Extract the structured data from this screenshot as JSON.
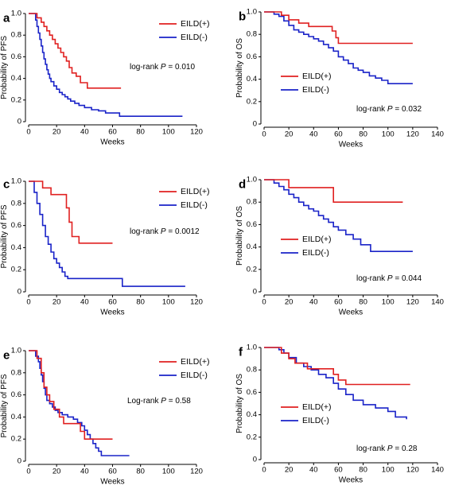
{
  "chart_data": [
    {
      "panel": "a",
      "type": "line",
      "step": true,
      "xlabel": "Weeks",
      "ylabel": "Probability of PFS",
      "xlim": [
        0,
        120
      ],
      "ylim": [
        0,
        1.0
      ],
      "xticks": [
        "0",
        "20",
        "40",
        "60",
        "80",
        "100",
        "120"
      ],
      "yticks": [
        "0",
        "0.2",
        "0.4",
        "0.6",
        "0.8",
        "1.0"
      ],
      "legend_position": "top-right",
      "annotation": {
        "prefix": "log-rank ",
        "italic": "P",
        "suffix": " = 0.010"
      },
      "series": [
        {
          "name": "EILD(+)",
          "color": "#e02020",
          "x": [
            0,
            6,
            9,
            11,
            13,
            15,
            17,
            19,
            21,
            23,
            25,
            27,
            29,
            31,
            34,
            37,
            42,
            66
          ],
          "y": [
            1.0,
            0.96,
            0.92,
            0.88,
            0.84,
            0.8,
            0.76,
            0.72,
            0.68,
            0.64,
            0.6,
            0.56,
            0.5,
            0.45,
            0.42,
            0.36,
            0.31,
            0.31
          ]
        },
        {
          "name": "EILD(-)",
          "color": "#1a23c8",
          "x": [
            0,
            5,
            6,
            7,
            8,
            9,
            10,
            11,
            12,
            13,
            14,
            15,
            16,
            18,
            20,
            22,
            24,
            26,
            28,
            30,
            33,
            36,
            40,
            45,
            50,
            55,
            65,
            110
          ],
          "y": [
            1.0,
            0.94,
            0.88,
            0.82,
            0.76,
            0.7,
            0.64,
            0.58,
            0.53,
            0.48,
            0.44,
            0.4,
            0.37,
            0.33,
            0.3,
            0.27,
            0.25,
            0.23,
            0.21,
            0.19,
            0.17,
            0.15,
            0.13,
            0.11,
            0.1,
            0.08,
            0.05,
            0.05
          ]
        }
      ]
    },
    {
      "panel": "b",
      "type": "line",
      "step": true,
      "xlabel": "Weeks",
      "ylabel": "Probability of OS",
      "xlim": [
        0,
        140
      ],
      "ylim": [
        0,
        1.0
      ],
      "xticks": [
        "0",
        "20",
        "40",
        "60",
        "80",
        "100",
        "120",
        "140"
      ],
      "yticks": [
        "0",
        "0.2",
        "0.4",
        "0.6",
        "0.8",
        "1.0"
      ],
      "legend_position": "center-left",
      "annotation": {
        "prefix": "log-rank ",
        "italic": "P",
        "suffix": " = 0.032"
      },
      "series": [
        {
          "name": "EILD(+)",
          "color": "#e02020",
          "x": [
            0,
            14,
            20,
            28,
            36,
            55,
            58,
            60,
            120
          ],
          "y": [
            1.0,
            0.97,
            0.93,
            0.9,
            0.87,
            0.83,
            0.77,
            0.72,
            0.72
          ]
        },
        {
          "name": "EILD(-)",
          "color": "#1a23c8",
          "x": [
            0,
            8,
            12,
            16,
            20,
            24,
            28,
            32,
            36,
            40,
            44,
            48,
            52,
            56,
            60,
            64,
            68,
            72,
            76,
            80,
            85,
            90,
            95,
            100,
            120
          ],
          "y": [
            1.0,
            0.98,
            0.96,
            0.92,
            0.88,
            0.84,
            0.82,
            0.8,
            0.78,
            0.76,
            0.74,
            0.71,
            0.68,
            0.65,
            0.6,
            0.57,
            0.54,
            0.5,
            0.48,
            0.46,
            0.43,
            0.41,
            0.39,
            0.36,
            0.36
          ]
        }
      ]
    },
    {
      "panel": "c",
      "type": "line",
      "step": true,
      "xlabel": "Weeks",
      "ylabel": "Probability of PFS",
      "xlim": [
        0,
        120
      ],
      "ylim": [
        0,
        1.0
      ],
      "xticks": [
        "0",
        "20",
        "40",
        "60",
        "80",
        "100",
        "120"
      ],
      "yticks": [
        "0",
        "0.2",
        "0.4",
        "0.6",
        "0.8",
        "1.0"
      ],
      "legend_position": "top-right",
      "annotation": {
        "prefix": "log-rank ",
        "italic": "P",
        "suffix": " = 0.0012"
      },
      "series": [
        {
          "name": "EILD(+)",
          "color": "#e02020",
          "x": [
            0,
            10,
            16,
            27,
            29,
            31,
            36,
            60
          ],
          "y": [
            1.0,
            0.94,
            0.88,
            0.76,
            0.63,
            0.5,
            0.44,
            0.44
          ]
        },
        {
          "name": "EILD(-)",
          "color": "#1a23c8",
          "x": [
            0,
            4,
            6,
            8,
            10,
            12,
            14,
            16,
            18,
            20,
            22,
            24,
            26,
            28,
            30,
            60,
            67,
            112
          ],
          "y": [
            1.0,
            0.9,
            0.8,
            0.7,
            0.6,
            0.5,
            0.43,
            0.36,
            0.3,
            0.26,
            0.22,
            0.18,
            0.14,
            0.12,
            0.12,
            0.12,
            0.05,
            0.05
          ]
        }
      ]
    },
    {
      "panel": "d",
      "type": "line",
      "step": true,
      "xlabel": "Weeks",
      "ylabel": "Probability of OS",
      "xlim": [
        0,
        140
      ],
      "ylim": [
        0,
        1.0
      ],
      "xticks": [
        "0",
        "20",
        "40",
        "60",
        "80",
        "100",
        "120",
        "140"
      ],
      "yticks": [
        "0",
        "0.2",
        "0.4",
        "0.6",
        "0.8",
        "1.0"
      ],
      "legend_position": "center-left",
      "annotation": {
        "prefix": "log-rank ",
        "italic": "P",
        "suffix": " = 0.044"
      },
      "series": [
        {
          "name": "EILD(+)",
          "color": "#e02020",
          "x": [
            0,
            20,
            56,
            112
          ],
          "y": [
            1.0,
            0.93,
            0.8,
            0.8
          ]
        },
        {
          "name": "EILD(-)",
          "color": "#1a23c8",
          "x": [
            0,
            8,
            12,
            16,
            20,
            24,
            28,
            32,
            36,
            40,
            44,
            48,
            52,
            56,
            60,
            66,
            72,
            78,
            86,
            120
          ],
          "y": [
            1.0,
            0.97,
            0.94,
            0.91,
            0.87,
            0.84,
            0.8,
            0.77,
            0.74,
            0.72,
            0.68,
            0.65,
            0.62,
            0.58,
            0.55,
            0.51,
            0.47,
            0.42,
            0.36,
            0.36
          ]
        }
      ]
    },
    {
      "panel": "e",
      "type": "line",
      "step": true,
      "xlabel": "Weeks",
      "ylabel": "Probability of PFS",
      "xlim": [
        0,
        120
      ],
      "ylim": [
        0,
        1.0
      ],
      "xticks": [
        "0",
        "20",
        "40",
        "60",
        "80",
        "100",
        "120"
      ],
      "yticks": [
        "0",
        "0.2",
        "0.4",
        "0.6",
        "0.8",
        "1.0"
      ],
      "legend_position": "top-right",
      "annotation": {
        "prefix": "Log-rank ",
        "italic": "P",
        "suffix": " = 0.58"
      },
      "series": [
        {
          "name": "EILD(+)",
          "color": "#e02020",
          "x": [
            0,
            6,
            9,
            11,
            13,
            15,
            18,
            22,
            25,
            35,
            37,
            40,
            45,
            60
          ],
          "y": [
            1.0,
            0.93,
            0.8,
            0.67,
            0.6,
            0.54,
            0.47,
            0.4,
            0.34,
            0.34,
            0.27,
            0.2,
            0.2,
            0.2
          ]
        },
        {
          "name": "EILD(-)",
          "color": "#1a23c8",
          "x": [
            0,
            5,
            7,
            8,
            9,
            10,
            11,
            12,
            13,
            15,
            17,
            19,
            21,
            24,
            28,
            32,
            35,
            38,
            40,
            42,
            44,
            46,
            48,
            50,
            52,
            72
          ],
          "y": [
            1.0,
            0.95,
            0.9,
            0.84,
            0.78,
            0.72,
            0.66,
            0.6,
            0.55,
            0.52,
            0.49,
            0.46,
            0.44,
            0.42,
            0.4,
            0.38,
            0.35,
            0.32,
            0.28,
            0.24,
            0.2,
            0.16,
            0.12,
            0.09,
            0.05,
            0.05
          ]
        }
      ]
    },
    {
      "panel": "f",
      "type": "line",
      "step": true,
      "xlabel": "Weeks",
      "ylabel": "Probability of OS",
      "xlim": [
        0,
        140
      ],
      "ylim": [
        0,
        1.0
      ],
      "xticks": [
        "0",
        "20",
        "40",
        "60",
        "80",
        "100",
        "120",
        "140"
      ],
      "yticks": [
        "0",
        "0.2",
        "0.4",
        "0.6",
        "0.8",
        "1.0"
      ],
      "legend_position": "center-left",
      "annotation": {
        "prefix": "log-rank ",
        "italic": "P",
        "suffix": " = 0.28"
      },
      "series": [
        {
          "name": "EILD(+)",
          "color": "#e02020",
          "x": [
            0,
            14,
            20,
            25,
            35,
            42,
            56,
            60,
            66,
            118
          ],
          "y": [
            1.0,
            0.95,
            0.9,
            0.86,
            0.81,
            0.81,
            0.76,
            0.71,
            0.67,
            0.67
          ]
        },
        {
          "name": "EILD(-)",
          "color": "#1a23c8",
          "x": [
            0,
            12,
            16,
            20,
            26,
            32,
            38,
            44,
            50,
            56,
            60,
            66,
            72,
            80,
            90,
            100,
            106,
            115
          ],
          "y": [
            1.0,
            0.98,
            0.95,
            0.91,
            0.86,
            0.83,
            0.8,
            0.76,
            0.73,
            0.68,
            0.63,
            0.58,
            0.53,
            0.49,
            0.46,
            0.43,
            0.38,
            0.36
          ]
        }
      ]
    }
  ]
}
